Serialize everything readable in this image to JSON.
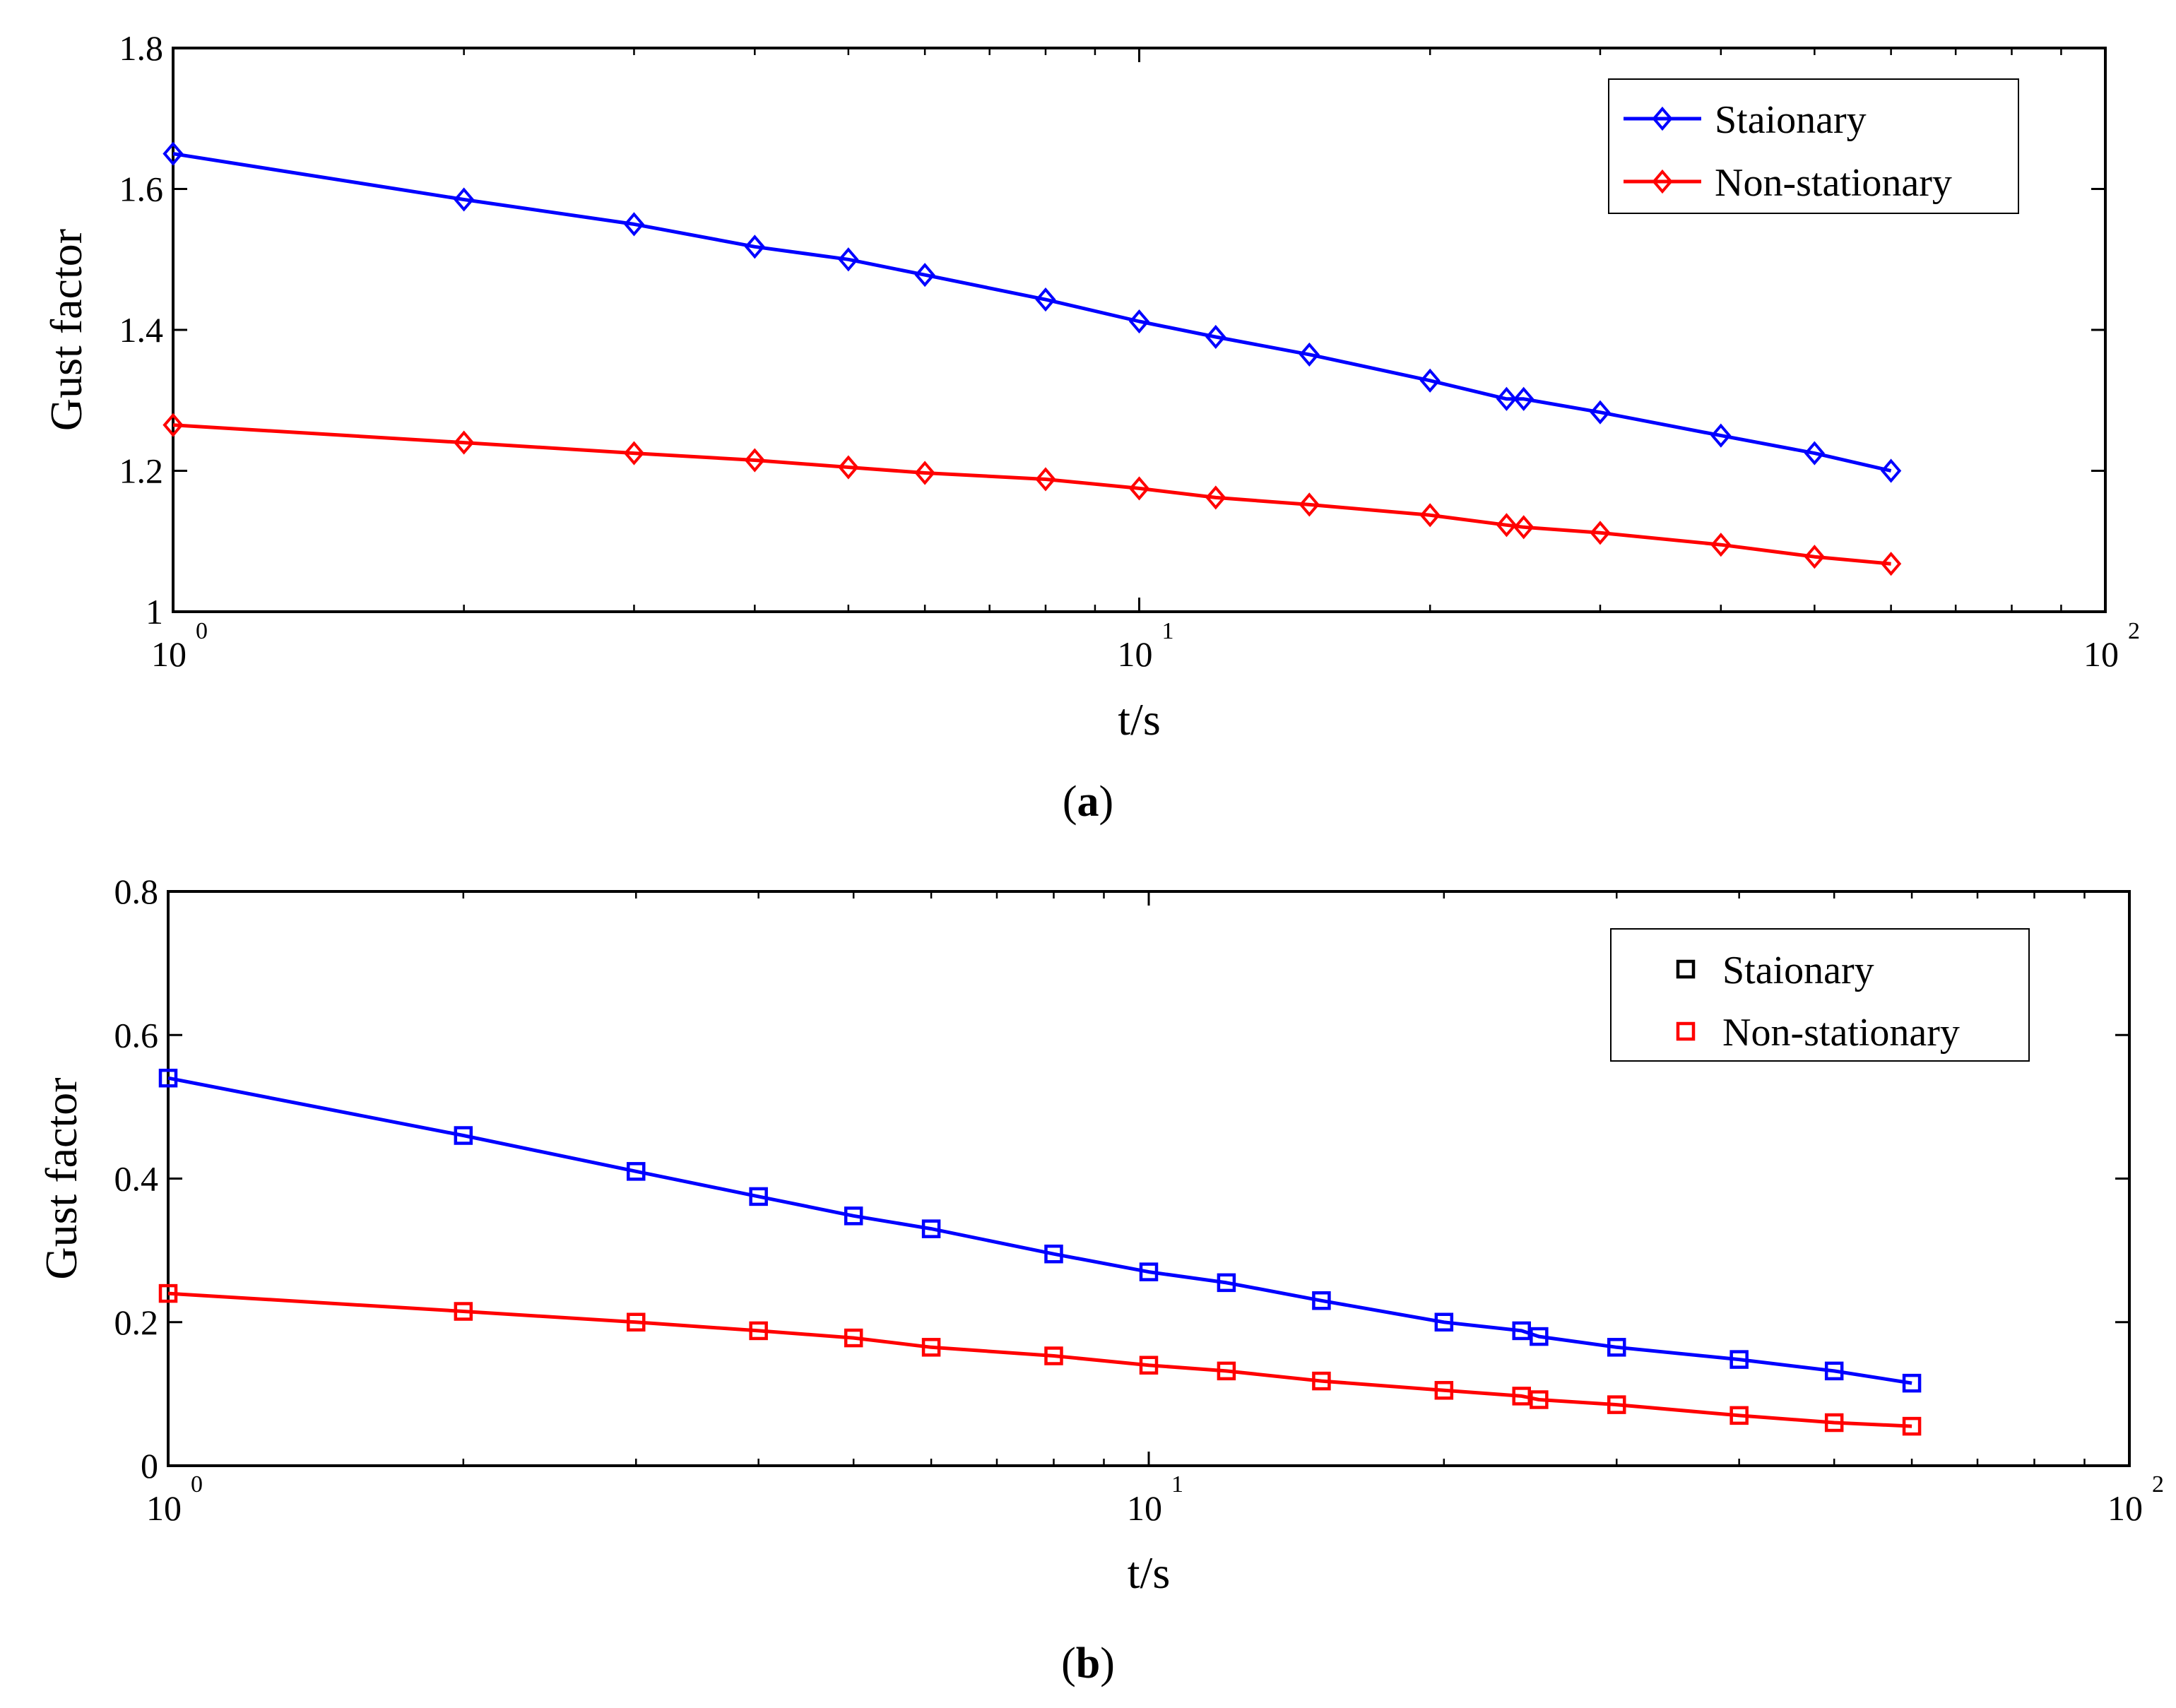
{
  "chart_data": [
    {
      "id": "a",
      "type": "line",
      "xscale": "log",
      "xlim": [
        1,
        100
      ],
      "ylim": [
        1,
        1.8
      ],
      "xlabel": "t/s",
      "ylabel": "Gust factor",
      "xticks": [
        {
          "value": 1,
          "base": "10",
          "exp": "0"
        },
        {
          "value": 10,
          "base": "10",
          "exp": "1"
        },
        {
          "value": 100,
          "base": "10",
          "exp": "2"
        }
      ],
      "yticks": [
        {
          "value": 1,
          "label": "1"
        },
        {
          "value": 1.2,
          "label": "1.2"
        },
        {
          "value": 1.4,
          "label": "1.4"
        },
        {
          "value": 1.6,
          "label": "1.6"
        },
        {
          "value": 1.8,
          "label": "1.8"
        }
      ],
      "legend": {
        "placement": "top-right"
      },
      "caption": {
        "letter": "a"
      },
      "x": [
        1,
        2,
        3,
        4,
        5,
        6,
        8,
        10,
        12,
        15,
        20,
        24,
        25,
        30,
        40,
        50,
        60
      ],
      "series": [
        {
          "name": "Staionary",
          "color": "#0000ff",
          "marker": "diamond",
          "marker_color": "#0000ff",
          "values": [
            1.65,
            1.585,
            1.55,
            1.518,
            1.5,
            1.478,
            1.443,
            1.412,
            1.39,
            1.365,
            1.328,
            1.302,
            1.302,
            1.283,
            1.25,
            1.225,
            1.2
          ]
        },
        {
          "name": "Non-stationary",
          "color": "#ff0000",
          "marker": "diamond",
          "marker_color": "#ff0000",
          "values": [
            1.265,
            1.24,
            1.225,
            1.215,
            1.205,
            1.197,
            1.188,
            1.175,
            1.162,
            1.152,
            1.137,
            1.123,
            1.12,
            1.112,
            1.095,
            1.078,
            1.068
          ]
        }
      ]
    },
    {
      "id": "b",
      "type": "line",
      "xscale": "log",
      "xlim": [
        1,
        100
      ],
      "ylim": [
        0,
        0.8
      ],
      "xlabel": "t/s",
      "ylabel": "Gust factor",
      "xticks": [
        {
          "value": 1,
          "base": "10",
          "exp": "0"
        },
        {
          "value": 10,
          "base": "10",
          "exp": "1"
        },
        {
          "value": 100,
          "base": "10",
          "exp": "2"
        }
      ],
      "yticks": [
        {
          "value": 0,
          "label": "0"
        },
        {
          "value": 0.2,
          "label": "0.2"
        },
        {
          "value": 0.4,
          "label": "0.4"
        },
        {
          "value": 0.6,
          "label": "0.6"
        },
        {
          "value": 0.8,
          "label": "0.8"
        }
      ],
      "legend": {
        "placement": "top-right"
      },
      "caption": {
        "letter": "b"
      },
      "x": [
        1,
        2,
        3,
        4,
        5,
        6,
        8,
        10,
        12,
        15,
        20,
        24,
        25,
        30,
        40,
        50,
        60
      ],
      "series": [
        {
          "name": "Staionary",
          "color": "#0000ff",
          "marker": "square",
          "marker_color": "#0000ff",
          "legend_color": "#000000",
          "values": [
            0.54,
            0.46,
            0.41,
            0.375,
            0.348,
            0.33,
            0.295,
            0.27,
            0.255,
            0.23,
            0.2,
            0.188,
            0.18,
            0.165,
            0.148,
            0.132,
            0.115
          ]
        },
        {
          "name": "Non-stationary",
          "color": "#ff0000",
          "marker": "square",
          "marker_color": "#ff0000",
          "legend_color": "#ff0000",
          "values": [
            0.24,
            0.215,
            0.2,
            0.188,
            0.178,
            0.165,
            0.153,
            0.14,
            0.132,
            0.118,
            0.105,
            0.097,
            0.092,
            0.085,
            0.07,
            0.06,
            0.055
          ]
        }
      ]
    }
  ]
}
